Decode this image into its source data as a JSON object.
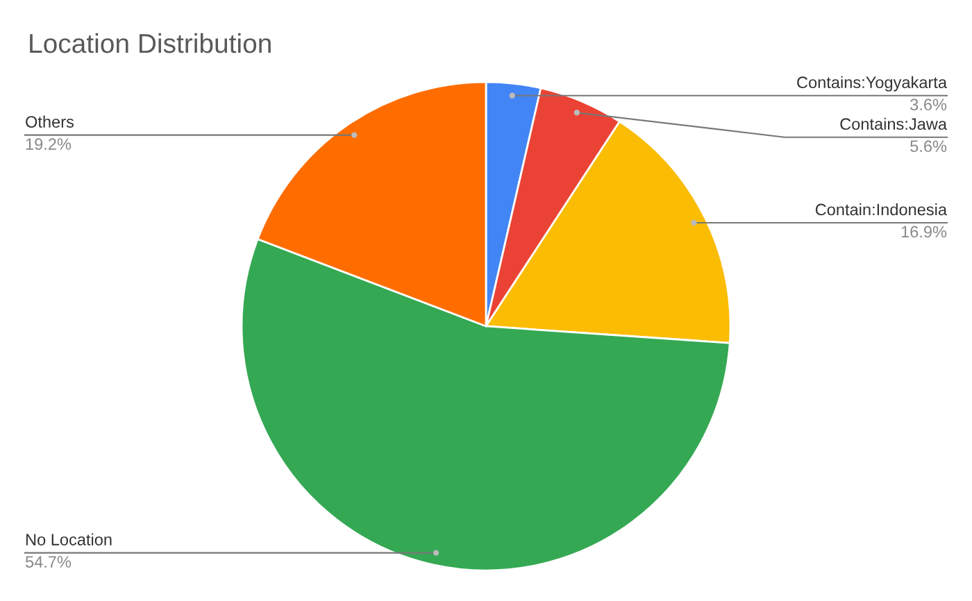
{
  "chart_data": {
    "type": "pie",
    "title": "Location Distribution",
    "categories": [
      "Contains:Yogyakarta",
      "Contains:Jawa",
      "Contain:Indonesia",
      "No Location",
      "Others"
    ],
    "values": [
      3.6,
      5.6,
      16.9,
      54.7,
      19.2
    ],
    "value_labels": [
      "3.6%",
      "5.6%",
      "16.9%",
      "54.7%",
      "19.2%"
    ],
    "colors": [
      "#4285f4",
      "#ea4335",
      "#fbbc04",
      "#34a853",
      "#ff6d01"
    ],
    "legend": false
  }
}
